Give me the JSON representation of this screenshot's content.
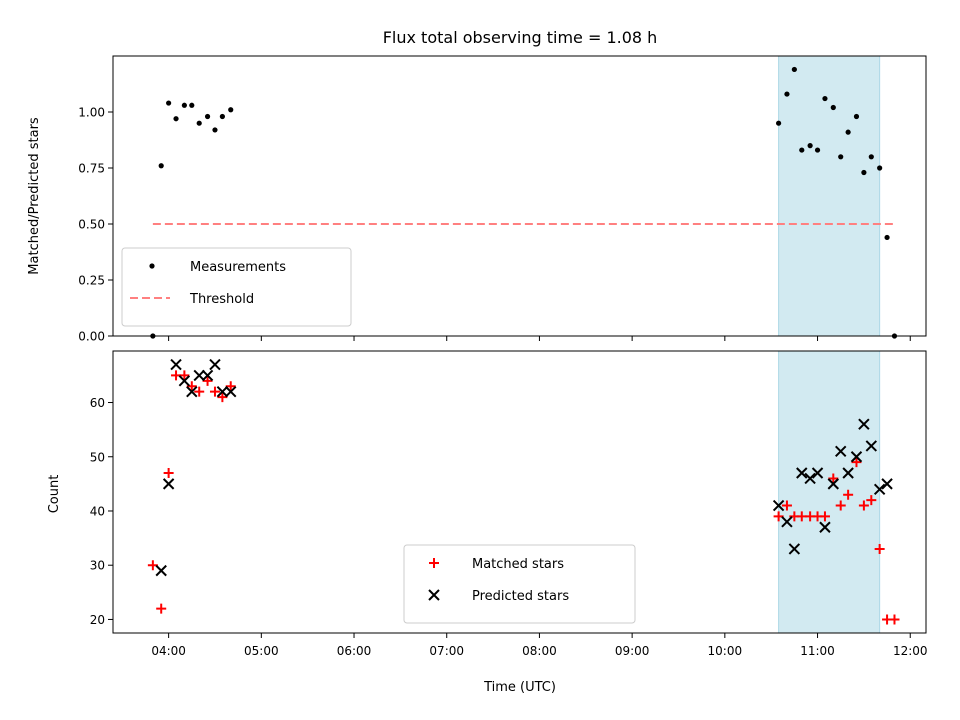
{
  "chart_data": {
    "title": "Flux total observing time = 1.08 h",
    "xlabel": "Time (UTC)",
    "x_unit": "hours UTC",
    "x_ticks": [
      "04:00",
      "05:00",
      "06:00",
      "07:00",
      "08:00",
      "09:00",
      "10:00",
      "11:00",
      "12:00"
    ],
    "x_tick_values": [
      4,
      5,
      6,
      7,
      8,
      9,
      10,
      11,
      12
    ],
    "xlim": [
      3.4,
      12.17
    ],
    "highlight_span": {
      "x": [
        10.58,
        11.67
      ],
      "color": "#add8e6"
    },
    "panels": [
      {
        "type": "scatter",
        "ylabel": "Matched/Predicted stars",
        "ylim": [
          0,
          1.25
        ],
        "y_ticks": [
          "0.00",
          "0.25",
          "0.50",
          "0.75",
          "1.00"
        ],
        "y_tick_values": [
          0,
          0.25,
          0.5,
          0.75,
          1.0
        ],
        "legend_position": "lower left",
        "series": [
          {
            "name": "Measurements",
            "type": "scatter",
            "marker": "dot",
            "color": "#000000",
            "x": [
              3.83,
              3.92,
              4.0,
              4.08,
              4.17,
              4.25,
              4.33,
              4.42,
              4.5,
              4.58,
              4.67,
              10.58,
              10.67,
              10.75,
              10.83,
              10.92,
              11.0,
              11.08,
              11.17,
              11.25,
              11.33,
              11.42,
              11.5,
              11.58,
              11.67,
              11.75,
              11.83
            ],
            "y": [
              0.0,
              0.76,
              1.04,
              0.97,
              1.03,
              1.03,
              0.95,
              0.98,
              0.92,
              0.98,
              1.01,
              0.95,
              1.08,
              1.19,
              0.83,
              0.85,
              0.83,
              1.06,
              1.02,
              0.8,
              0.91,
              0.98,
              0.73,
              0.8,
              0.75,
              0.44,
              0.0
            ]
          },
          {
            "name": "Threshold",
            "type": "line",
            "style": "dashed",
            "color": "#ff8080",
            "x": [
              3.83,
              11.83
            ],
            "y": [
              0.5,
              0.5
            ]
          }
        ]
      },
      {
        "type": "scatter",
        "ylabel": "Count",
        "ylim": [
          17.5,
          69.5
        ],
        "y_ticks": [
          "20",
          "30",
          "40",
          "50",
          "60"
        ],
        "y_tick_values": [
          20,
          30,
          40,
          50,
          60
        ],
        "legend_position": "lower center",
        "series": [
          {
            "name": "Matched stars",
            "type": "scatter",
            "marker": "plus",
            "color": "#ff0000",
            "x": [
              3.83,
              3.92,
              4.0,
              4.08,
              4.17,
              4.25,
              4.33,
              4.42,
              4.5,
              4.58,
              4.67,
              10.58,
              10.67,
              10.75,
              10.83,
              10.92,
              11.0,
              11.08,
              11.17,
              11.25,
              11.33,
              11.42,
              11.5,
              11.58,
              11.67,
              11.75,
              11.83
            ],
            "y": [
              30,
              22,
              47,
              65,
              65,
              63,
              62,
              64,
              62,
              61,
              63,
              39,
              41,
              39,
              39,
              39,
              39,
              39,
              46,
              41,
              43,
              49,
              41,
              42,
              33,
              20,
              20
            ]
          },
          {
            "name": "Predicted stars",
            "type": "scatter",
            "marker": "x",
            "color": "#000000",
            "x": [
              3.92,
              4.0,
              4.08,
              4.17,
              4.25,
              4.33,
              4.42,
              4.5,
              4.58,
              4.67,
              10.58,
              10.67,
              10.75,
              10.83,
              10.92,
              11.0,
              11.08,
              11.17,
              11.25,
              11.33,
              11.42,
              11.5,
              11.58,
              11.67,
              11.75
            ],
            "y": [
              29,
              45,
              67,
              64,
              62,
              65,
              65,
              67,
              62,
              62,
              41,
              38,
              33,
              47,
              46,
              47,
              37,
              45,
              51,
              47,
              50,
              56,
              52,
              44,
              45
            ]
          }
        ]
      }
    ]
  }
}
